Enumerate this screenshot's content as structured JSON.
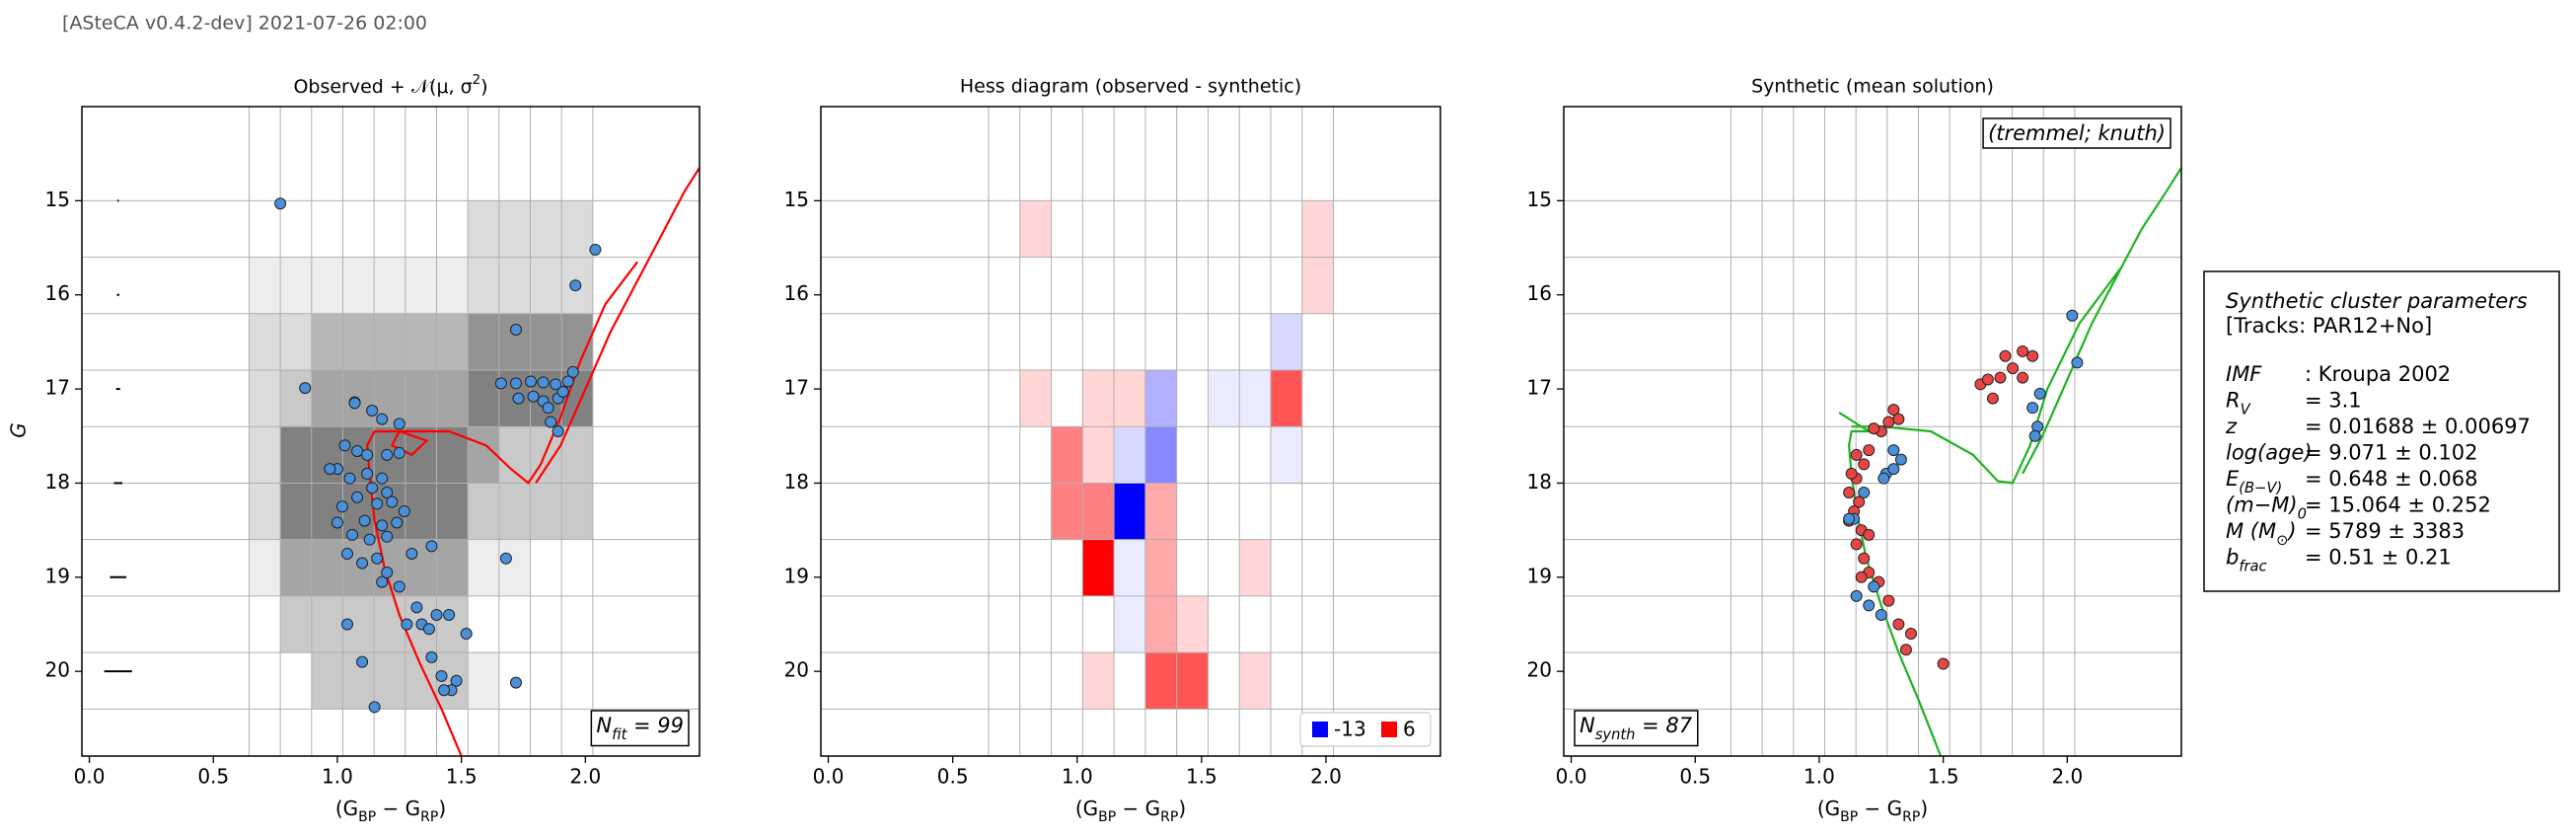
{
  "header": {
    "text": "[ASteCA v0.4.2-dev] 2021-07-26 02:00"
  },
  "chart_data": [
    {
      "type": "scatter",
      "title": [
        {
          "text": "Observed + 𝒩(μ, σ"
        },
        {
          "text": "2",
          "sup": true
        },
        {
          "text": ")"
        }
      ],
      "xlabel": [
        {
          "text": "(G"
        },
        {
          "text": "BP",
          "sub": true
        },
        {
          "text": " − G"
        },
        {
          "text": "RP",
          "sub": true
        },
        {
          "text": ")"
        }
      ],
      "ylabel": "G",
      "xlim": [
        -0.03,
        2.46
      ],
      "ylim": [
        20.9,
        14.0
      ],
      "xticks": [
        {
          "value": 0,
          "label": "0.0"
        },
        0.5,
        {
          "value": 1,
          "label": "1.0"
        },
        1.5,
        {
          "value": 2,
          "label": "2.0"
        }
      ],
      "yticks": [
        15,
        16,
        17,
        18,
        19,
        20
      ],
      "grid": true,
      "bins_x": [
        0.644,
        0.77,
        0.896,
        1.022,
        1.148,
        1.274,
        1.4,
        1.526,
        1.652,
        1.778,
        1.904,
        2.03
      ],
      "bins_y": [
        15.0,
        15.6,
        16.2,
        16.8,
        17.4,
        18.0,
        18.6,
        19.2,
        19.8,
        20.4
      ],
      "density": [
        [
          0,
          0,
          0,
          0,
          0,
          0,
          0,
          2,
          2,
          2,
          2
        ],
        [
          1,
          1,
          1,
          1,
          1,
          1,
          1,
          2,
          2,
          2,
          2
        ],
        [
          2,
          2,
          4,
          4,
          4,
          4,
          4,
          6,
          6,
          6,
          6
        ],
        [
          2,
          3,
          5,
          5,
          5,
          5,
          5,
          7,
          7,
          7,
          7
        ],
        [
          2,
          7,
          7,
          7,
          7,
          7,
          7,
          5,
          3,
          3,
          3
        ],
        [
          2,
          7,
          7,
          7,
          7,
          7,
          7,
          3,
          3,
          3,
          3
        ],
        [
          1,
          5,
          5,
          5,
          5,
          5,
          5,
          1,
          1,
          0,
          0
        ],
        [
          0,
          3,
          3,
          3,
          3,
          3,
          3,
          0,
          0,
          0,
          0
        ],
        [
          0,
          0,
          3,
          3,
          3,
          3,
          3,
          1,
          0,
          0,
          0
        ]
      ],
      "error_bars": {
        "x": [
          0.116,
          0.116,
          0.116,
          0.116,
          0.116,
          0.116
        ],
        "y": [
          15,
          16,
          17,
          18,
          19,
          20
        ],
        "xerr": [
          0.003,
          0.005,
          0.008,
          0.017,
          0.033,
          0.056
        ]
      },
      "lines": [
        {
          "color": "#ff0000",
          "x": [
            1.5,
            1.42,
            1.33,
            1.25,
            1.19,
            1.15,
            1.13,
            1.12,
            1.15,
            1.25,
            1.36,
            1.3,
            1.22,
            1.25,
            1.45,
            1.6,
            1.7,
            1.77,
            1.82,
            1.9,
            1.98,
            2.08,
            2.21,
            null,
            1.8,
            1.9,
            2.0,
            2.1,
            2.2,
            2.3,
            2.4,
            2.46
          ],
          "y": [
            20.9,
            20.4,
            19.9,
            19.4,
            18.9,
            18.4,
            17.9,
            17.6,
            17.45,
            17.45,
            17.55,
            17.7,
            17.6,
            17.45,
            17.45,
            17.6,
            17.85,
            18.0,
            17.8,
            17.3,
            16.7,
            16.1,
            15.65,
            null,
            18.0,
            17.6,
            17.0,
            16.4,
            15.9,
            15.4,
            14.9,
            14.65
          ]
        }
      ],
      "series": [
        {
          "color": "#4a90d9",
          "x": [
            0.77,
            2.04,
            1.96,
            1.72,
            0.87,
            1.07,
            1.95,
            1.93,
            1.88,
            1.83,
            1.78,
            1.66,
            1.72,
            1.73,
            1.79,
            1.83,
            1.85,
            1.89,
            1.91,
            1.89,
            1.86,
            1.07,
            1.14,
            1.18,
            1.25,
            1.03,
            1.08,
            1.12,
            1.2,
            1.25,
            1.0,
            0.97,
            1.05,
            1.12,
            1.18,
            1.14,
            1.2,
            1.08,
            1.02,
            1.16,
            1.22,
            1.27,
            1.0,
            1.11,
            1.18,
            1.24,
            1.06,
            1.13,
            1.2,
            1.04,
            1.1,
            1.16,
            1.3,
            1.38,
            1.2,
            1.25,
            1.18,
            1.68,
            1.32,
            1.4,
            1.28,
            1.34,
            1.37,
            1.45,
            1.52,
            1.04,
            1.1,
            1.38,
            1.42,
            1.48,
            1.46,
            1.43,
            1.72,
            1.15
          ],
          "y": [
            15.03,
            15.52,
            15.9,
            16.37,
            16.99,
            17.14,
            16.82,
            16.92,
            16.95,
            16.93,
            16.92,
            16.94,
            16.94,
            17.1,
            17.08,
            17.13,
            17.2,
            17.1,
            17.03,
            17.45,
            17.35,
            17.15,
            17.23,
            17.32,
            17.37,
            17.6,
            17.66,
            17.7,
            17.7,
            17.68,
            17.85,
            17.85,
            17.95,
            17.9,
            17.95,
            18.05,
            18.1,
            18.15,
            18.25,
            18.22,
            18.2,
            18.3,
            18.42,
            18.4,
            18.45,
            18.42,
            18.55,
            18.6,
            18.57,
            18.75,
            18.85,
            18.8,
            18.75,
            18.67,
            18.95,
            19.1,
            19.05,
            18.8,
            19.32,
            19.4,
            19.5,
            19.5,
            19.55,
            19.4,
            19.6,
            19.5,
            19.9,
            19.85,
            20.05,
            20.1,
            20.2,
            20.2,
            20.12,
            20.38
          ]
        }
      ],
      "annotations": [
        {
          "text": [
            {
              "text": "N"
            },
            {
              "text": "fit",
              "sub": true
            },
            {
              "text": " = 99"
            }
          ],
          "loc": "lower right"
        }
      ]
    },
    {
      "type": "heatmap",
      "title": "Hess diagram (observed - synthetic)",
      "xlabel": [
        {
          "text": "(G"
        },
        {
          "text": "BP",
          "sub": true
        },
        {
          "text": " − G"
        },
        {
          "text": "RP",
          "sub": true
        },
        {
          "text": ")"
        }
      ],
      "xlim": [
        -0.03,
        2.46
      ],
      "ylim": [
        20.9,
        14.0
      ],
      "xticks": [
        {
          "value": 0,
          "label": "0.0"
        },
        0.5,
        {
          "value": 1,
          "label": "1.0"
        },
        1.5,
        {
          "value": 2,
          "label": "2.0"
        }
      ],
      "yticks": [
        15,
        16,
        17,
        18,
        19,
        20
      ],
      "grid": true,
      "bins_x": [
        0.644,
        0.77,
        0.896,
        1.022,
        1.148,
        1.274,
        1.4,
        1.526,
        1.652,
        1.778,
        1.904,
        2.03
      ],
      "bins_y": [
        15.0,
        15.6,
        16.2,
        16.8,
        17.4,
        18.0,
        18.6,
        19.2,
        19.8,
        20.4
      ],
      "z": [
        [
          null,
          1,
          null,
          null,
          null,
          null,
          null,
          null,
          null,
          null,
          1
        ],
        [
          null,
          null,
          null,
          null,
          null,
          null,
          null,
          null,
          null,
          null,
          1
        ],
        [
          null,
          null,
          null,
          null,
          null,
          null,
          null,
          null,
          null,
          -2,
          null
        ],
        [
          null,
          1,
          null,
          1,
          1,
          -4,
          null,
          -1,
          -1,
          4,
          null
        ],
        [
          null,
          null,
          3,
          1,
          -2,
          -6,
          null,
          null,
          null,
          -1,
          null
        ],
        [
          null,
          null,
          3,
          3,
          -13,
          2,
          null,
          null,
          null,
          null,
          null
        ],
        [
          null,
          null,
          null,
          6,
          -1,
          2,
          null,
          null,
          1,
          null,
          null
        ],
        [
          null,
          null,
          null,
          null,
          -1,
          2,
          1,
          null,
          null,
          null,
          null
        ],
        [
          null,
          null,
          null,
          1,
          null,
          4,
          4,
          null,
          1,
          null,
          null
        ]
      ],
      "zlim": [
        -13,
        6
      ],
      "zcolors": [
        "#0000ff",
        "#ff0000"
      ],
      "legend": "lower right"
    },
    {
      "type": "scatter",
      "title": "Synthetic (mean solution)",
      "xlabel": [
        {
          "text": "(G"
        },
        {
          "text": "BP",
          "sub": true
        },
        {
          "text": " − G"
        },
        {
          "text": "RP",
          "sub": true
        },
        {
          "text": ")"
        }
      ],
      "xlim": [
        -0.03,
        2.46
      ],
      "ylim": [
        20.9,
        14.0
      ],
      "xticks": [
        {
          "value": 0,
          "label": "0.0"
        },
        0.5,
        {
          "value": 1,
          "label": "1.0"
        },
        1.5,
        {
          "value": 2,
          "label": "2.0"
        }
      ],
      "yticks": [
        15,
        16,
        17,
        18,
        19,
        20
      ],
      "grid": true,
      "bins_x": [
        0.644,
        0.77,
        0.896,
        1.022,
        1.148,
        1.274,
        1.4,
        1.526,
        1.652,
        1.778,
        1.904,
        2.03
      ],
      "bins_y": [
        15.0,
        15.6,
        16.2,
        16.8,
        17.4,
        18.0,
        18.6,
        19.2,
        19.8,
        20.4
      ],
      "lines": [
        {
          "color": "#1fb31f",
          "x": [
            1.49,
            1.4,
            1.32,
            1.25,
            1.19,
            1.15,
            1.13,
            1.12,
            1.13,
            1.2,
            1.14,
            1.08,
            null,
            1.13,
            1.25,
            1.45,
            1.62,
            1.72,
            1.78,
            1.85,
            1.92,
            2.05,
            2.22,
            null,
            1.82,
            1.9,
            2.0,
            2.1,
            2.2,
            2.3,
            2.4,
            2.46
          ],
          "y": [
            20.9,
            20.3,
            19.8,
            19.3,
            18.8,
            18.3,
            17.9,
            17.6,
            17.45,
            17.45,
            17.35,
            17.25,
            null,
            17.4,
            17.4,
            17.45,
            17.7,
            17.98,
            18.0,
            17.6,
            17.0,
            16.3,
            15.7,
            null,
            17.9,
            17.5,
            16.9,
            16.3,
            15.8,
            15.3,
            14.9,
            14.65
          ]
        }
      ],
      "series": [
        {
          "color": "#e84545",
          "x": [
            1.12,
            1.15,
            1.18,
            1.13,
            1.16,
            1.14,
            1.12,
            1.17,
            1.2,
            1.15,
            1.18,
            1.2,
            1.17,
            1.24,
            1.28,
            1.32,
            1.37,
            1.35,
            1.5,
            1.25,
            1.28,
            1.3,
            1.32,
            1.22,
            1.2,
            1.15,
            1.65,
            1.68,
            1.7,
            1.73,
            1.78,
            1.82,
            1.86,
            1.82,
            1.75
          ],
          "y": [
            18.1,
            17.95,
            17.8,
            17.9,
            18.2,
            18.3,
            18.4,
            18.5,
            18.55,
            18.65,
            18.8,
            18.95,
            19.0,
            19.05,
            19.25,
            19.5,
            19.6,
            19.77,
            19.92,
            17.45,
            17.35,
            17.22,
            17.32,
            17.42,
            17.65,
            17.7,
            16.95,
            16.9,
            17.1,
            16.88,
            16.78,
            16.88,
            16.65,
            16.6,
            16.65
          ]
        },
        {
          "color": "#4a90d9",
          "x": [
            1.27,
            1.3,
            1.3,
            1.33,
            1.14,
            1.12,
            1.15,
            1.2,
            1.25,
            2.02,
            2.04,
            1.86,
            1.88,
            1.87,
            1.89,
            1.26,
            1.18,
            1.22
          ],
          "y": [
            17.9,
            17.85,
            17.65,
            17.75,
            18.38,
            18.38,
            19.2,
            19.3,
            19.4,
            16.22,
            16.72,
            17.2,
            17.4,
            17.5,
            17.05,
            17.95,
            18.1,
            19.1
          ]
        }
      ],
      "annotations": [
        {
          "text": [
            {
              "text": "(tremmel; knuth)"
            }
          ],
          "loc": "upper right"
        },
        {
          "text": [
            {
              "text": "N"
            },
            {
              "text": "synth",
              "sub": true
            },
            {
              "text": " = 87"
            }
          ],
          "loc": "lower left"
        }
      ]
    }
  ],
  "params": {
    "title": "Synthetic cluster parameters",
    "tracks": "[Tracks: PAR12+No]",
    "rows": [
      {
        "label": [
          {
            "text": "IMF"
          }
        ],
        "value": ": Kroupa 2002"
      },
      {
        "label": [
          {
            "text": "R"
          },
          {
            "text": "V",
            "sub": true
          }
        ],
        "value": "= 3.1"
      },
      {
        "label": [
          {
            "text": "z"
          }
        ],
        "value": "= 0.01688 ± 0.00697"
      },
      {
        "label": [
          {
            "text": "log(age)"
          }
        ],
        "value": "= 9.071 ± 0.102"
      },
      {
        "label": [
          {
            "text": "E"
          },
          {
            "text": "(B−V)",
            "sub": true
          }
        ],
        "value": "= 0.648 ± 0.068"
      },
      {
        "label": [
          {
            "text": "(m−M)"
          },
          {
            "text": "0",
            "sub": true
          }
        ],
        "value": "= 15.064 ± 0.252"
      },
      {
        "label": [
          {
            "text": "M (M"
          },
          {
            "text": "⊙",
            "sub": true
          },
          {
            "text": ")"
          }
        ],
        "value": "= 5789 ± 3383"
      },
      {
        "label": [
          {
            "text": "b"
          },
          {
            "text": "frac",
            "sub": true
          }
        ],
        "value": "= 0.51 ± 0.21"
      }
    ]
  }
}
